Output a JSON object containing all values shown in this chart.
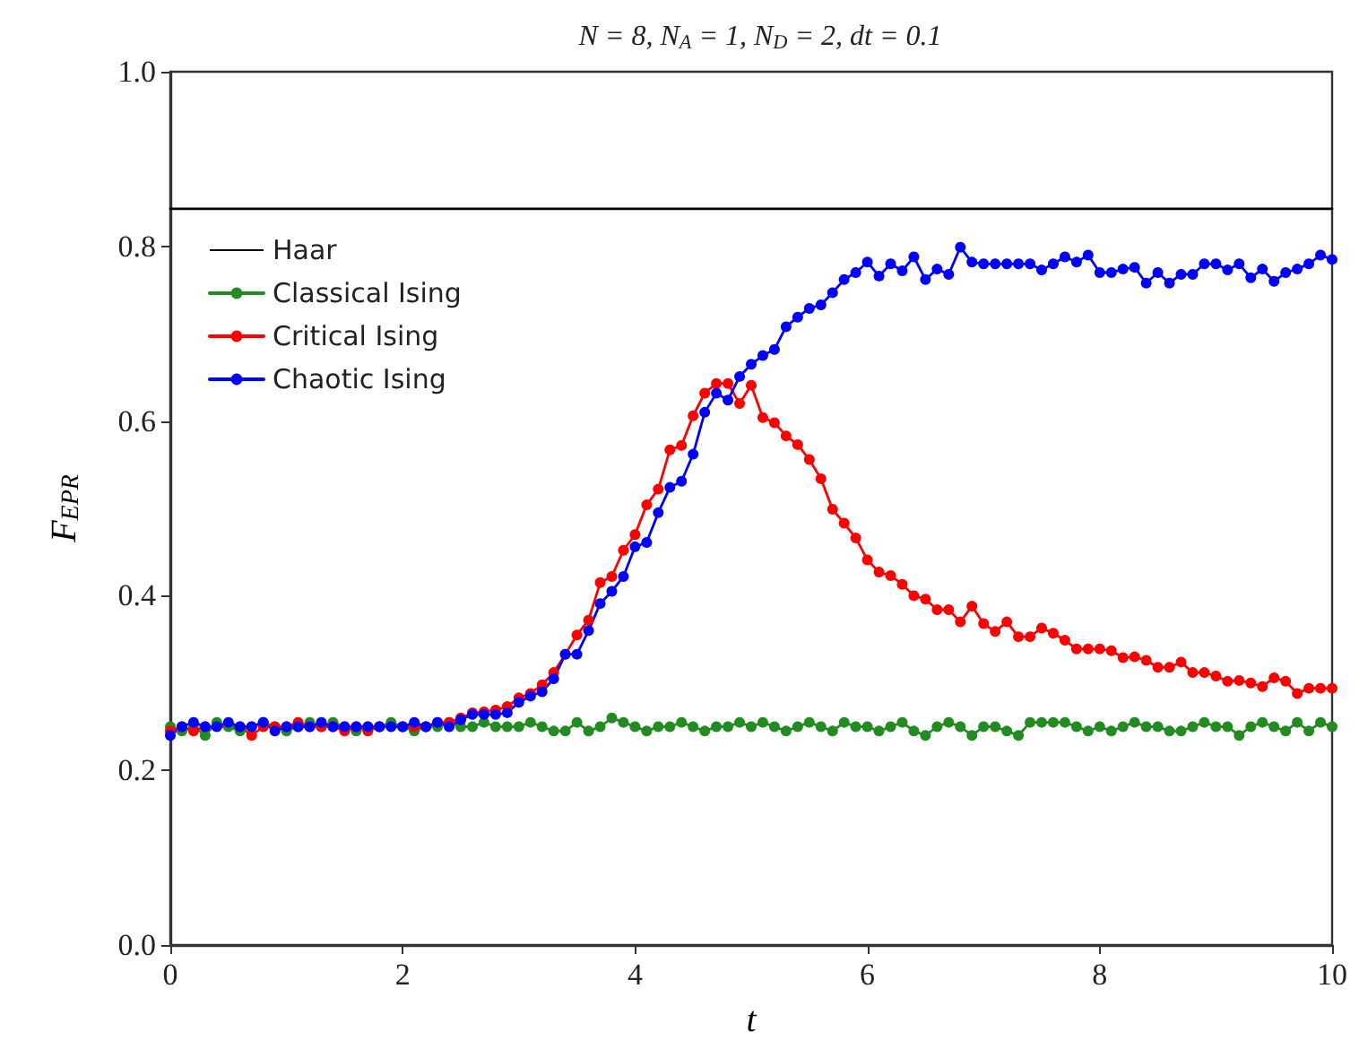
{
  "chart_data": {
    "type": "line",
    "title": "N = 8, N$_{A}$ = 1, N$_{D}$ = 2, dt = 0.1",
    "xlabel": "t",
    "ylabel": "F$_{EPR}$",
    "x": [
      0,
      0.1,
      0.2,
      0.3,
      0.4,
      0.5,
      0.6,
      0.7,
      0.8,
      0.9,
      1,
      1.1,
      1.2,
      1.3,
      1.4,
      1.5,
      1.6,
      1.7,
      1.8,
      1.9,
      2,
      2.1,
      2.2,
      2.3,
      2.4,
      2.5,
      2.6,
      2.7,
      2.8,
      2.9,
      3,
      3.1,
      3.2,
      3.3,
      3.4,
      3.5,
      3.6,
      3.7,
      3.8,
      3.9,
      4,
      4.1,
      4.2,
      4.3,
      4.4,
      4.5,
      4.6,
      4.7,
      4.8,
      4.9,
      5,
      5.1,
      5.2,
      5.3,
      5.4,
      5.5,
      5.6,
      5.7,
      5.8,
      5.9,
      6,
      6.1,
      6.2,
      6.3,
      6.4,
      6.5,
      6.6,
      6.7,
      6.8,
      6.9,
      7,
      7.1,
      7.2,
      7.3,
      7.4,
      7.5,
      7.6,
      7.7,
      7.8,
      7.9,
      8,
      8.1,
      8.2,
      8.3,
      8.4,
      8.5,
      8.6,
      8.7,
      8.8,
      8.9,
      9,
      9.1,
      9.2,
      9.3,
      9.4,
      9.5,
      9.6,
      9.7,
      9.8,
      9.9,
      10
    ],
    "series": [
      {
        "name": "Haar",
        "color": "#000000",
        "marker": "none",
        "x": [
          0,
          10
        ],
        "values": [
          0.843,
          0.843
        ]
      },
      {
        "name": "Classical Ising",
        "color": "#228b22",
        "values": [
          0.25,
          0.245,
          0.25,
          0.24,
          0.255,
          0.25,
          0.245,
          0.25,
          0.255,
          0.25,
          0.245,
          0.25,
          0.255,
          0.25,
          0.255,
          0.25,
          0.245,
          0.25,
          0.25,
          0.255,
          0.25,
          0.245,
          0.25,
          0.25,
          0.255,
          0.25,
          0.25,
          0.255,
          0.25,
          0.25,
          0.25,
          0.255,
          0.25,
          0.245,
          0.245,
          0.255,
          0.245,
          0.25,
          0.26,
          0.255,
          0.25,
          0.245,
          0.25,
          0.25,
          0.255,
          0.25,
          0.245,
          0.25,
          0.25,
          0.255,
          0.25,
          0.255,
          0.25,
          0.245,
          0.25,
          0.255,
          0.25,
          0.245,
          0.255,
          0.25,
          0.25,
          0.245,
          0.25,
          0.255,
          0.245,
          0.24,
          0.25,
          0.255,
          0.25,
          0.24,
          0.25,
          0.25,
          0.245,
          0.24,
          0.255,
          0.255,
          0.255,
          0.255,
          0.25,
          0.245,
          0.25,
          0.245,
          0.25,
          0.255,
          0.25,
          0.25,
          0.245,
          0.245,
          0.25,
          0.255,
          0.25,
          0.25,
          0.24,
          0.25,
          0.255,
          0.25,
          0.245,
          0.255,
          0.245,
          0.255,
          0.25
        ]
      },
      {
        "name": "Critical Ising",
        "color": "#ff0000",
        "values": [
          0.245,
          0.25,
          0.245,
          0.25,
          null,
          null,
          0.25,
          0.24,
          0.25,
          0.25,
          0.25,
          0.255,
          0.25,
          0.25,
          0.25,
          0.245,
          0.25,
          0.245,
          0.25,
          null,
          0.25,
          0.25,
          0.25,
          0.255,
          0.255,
          0.26,
          0.266,
          0.267,
          0.269,
          0.273,
          0.283,
          0.288,
          0.298,
          0.312,
          0.333,
          0.355,
          0.372,
          0.415,
          0.422,
          0.452,
          0.47,
          0.504,
          0.522,
          0.567,
          0.572,
          0.606,
          0.632,
          0.643,
          0.643,
          0.62,
          0.641,
          0.604,
          0.598,
          0.583,
          0.573,
          0.556,
          0.534,
          0.499,
          0.483,
          0.466,
          0.441,
          0.427,
          0.423,
          0.413,
          0.4,
          0.396,
          0.384,
          0.384,
          0.37,
          0.388,
          0.368,
          0.359,
          0.37,
          0.353,
          0.353,
          0.363,
          0.357,
          0.349,
          0.339,
          0.339,
          0.339,
          0.337,
          0.329,
          0.33,
          0.326,
          0.318,
          0.318,
          0.324,
          0.312,
          0.312,
          0.308,
          0.302,
          0.303,
          0.3,
          0.296,
          0.306,
          0.302,
          0.288,
          0.294,
          0.294,
          0.294
        ]
      },
      {
        "name": "Chaotic Ising",
        "color": "#0000ff",
        "values": [
          0.24,
          0.25,
          0.255,
          0.25,
          0.25,
          0.255,
          0.25,
          0.25,
          0.255,
          0.245,
          0.25,
          0.25,
          0.25,
          0.255,
          0.25,
          0.25,
          0.25,
          0.25,
          0.25,
          0.25,
          0.25,
          0.255,
          0.25,
          0.255,
          0.25,
          0.258,
          0.264,
          0.264,
          0.264,
          0.266,
          0.278,
          0.285,
          0.29,
          0.305,
          0.333,
          0.333,
          0.36,
          0.391,
          0.405,
          0.422,
          0.456,
          0.461,
          0.495,
          0.524,
          0.531,
          0.562,
          0.61,
          0.632,
          0.624,
          0.651,
          0.665,
          0.675,
          0.682,
          0.708,
          0.719,
          0.729,
          0.733,
          0.747,
          0.762,
          0.77,
          0.782,
          0.766,
          0.78,
          0.772,
          0.788,
          0.762,
          0.774,
          0.768,
          0.799,
          0.782,
          0.78,
          0.78,
          0.78,
          0.78,
          0.78,
          0.773,
          0.78,
          0.788,
          0.782,
          0.79,
          0.77,
          0.77,
          0.774,
          0.776,
          0.758,
          0.77,
          0.758,
          0.768,
          0.768,
          0.78,
          0.78,
          0.773,
          0.78,
          0.764,
          0.774,
          0.76,
          0.77,
          0.774,
          0.78,
          0.79,
          0.785
        ]
      }
    ],
    "xlim": [
      0,
      10
    ],
    "xticks": [
      0,
      2,
      4,
      6,
      8,
      10
    ],
    "ylim": [
      0,
      1
    ],
    "yticks": [
      {
        "value": 0,
        "label": "0.0"
      },
      {
        "value": 0.2,
        "label": "0.2"
      },
      {
        "value": 0.4,
        "label": "0.4"
      },
      {
        "value": 0.6,
        "label": "0.6"
      },
      {
        "value": 0.8,
        "label": "0.8"
      },
      {
        "value": 1,
        "label": "1.0"
      }
    ],
    "grid": false,
    "legend": "top left",
    "marker": "circle",
    "line_style": "solid"
  }
}
